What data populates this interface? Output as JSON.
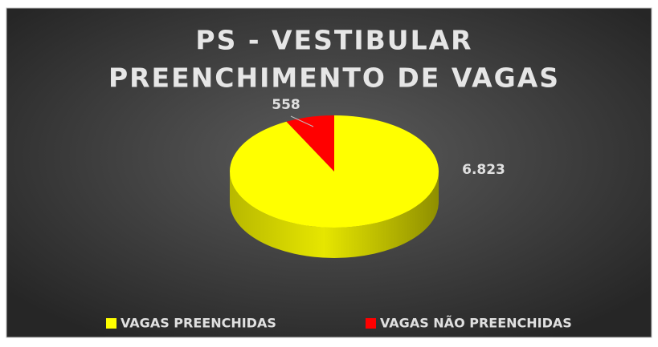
{
  "chart_data": {
    "type": "pie3d",
    "title": [
      "PS - VESTIBULAR",
      "PREENCHIMENTO DE VAGAS"
    ],
    "categories": [
      "VAGAS PREENCHIDAS",
      "VAGAS NÃO PREENCHIDAS"
    ],
    "values": [
      6823,
      558
    ],
    "value_labels": [
      "6.823",
      "558"
    ],
    "colors": [
      "#ffff00",
      "#ff0000"
    ],
    "legend": "bottom"
  }
}
